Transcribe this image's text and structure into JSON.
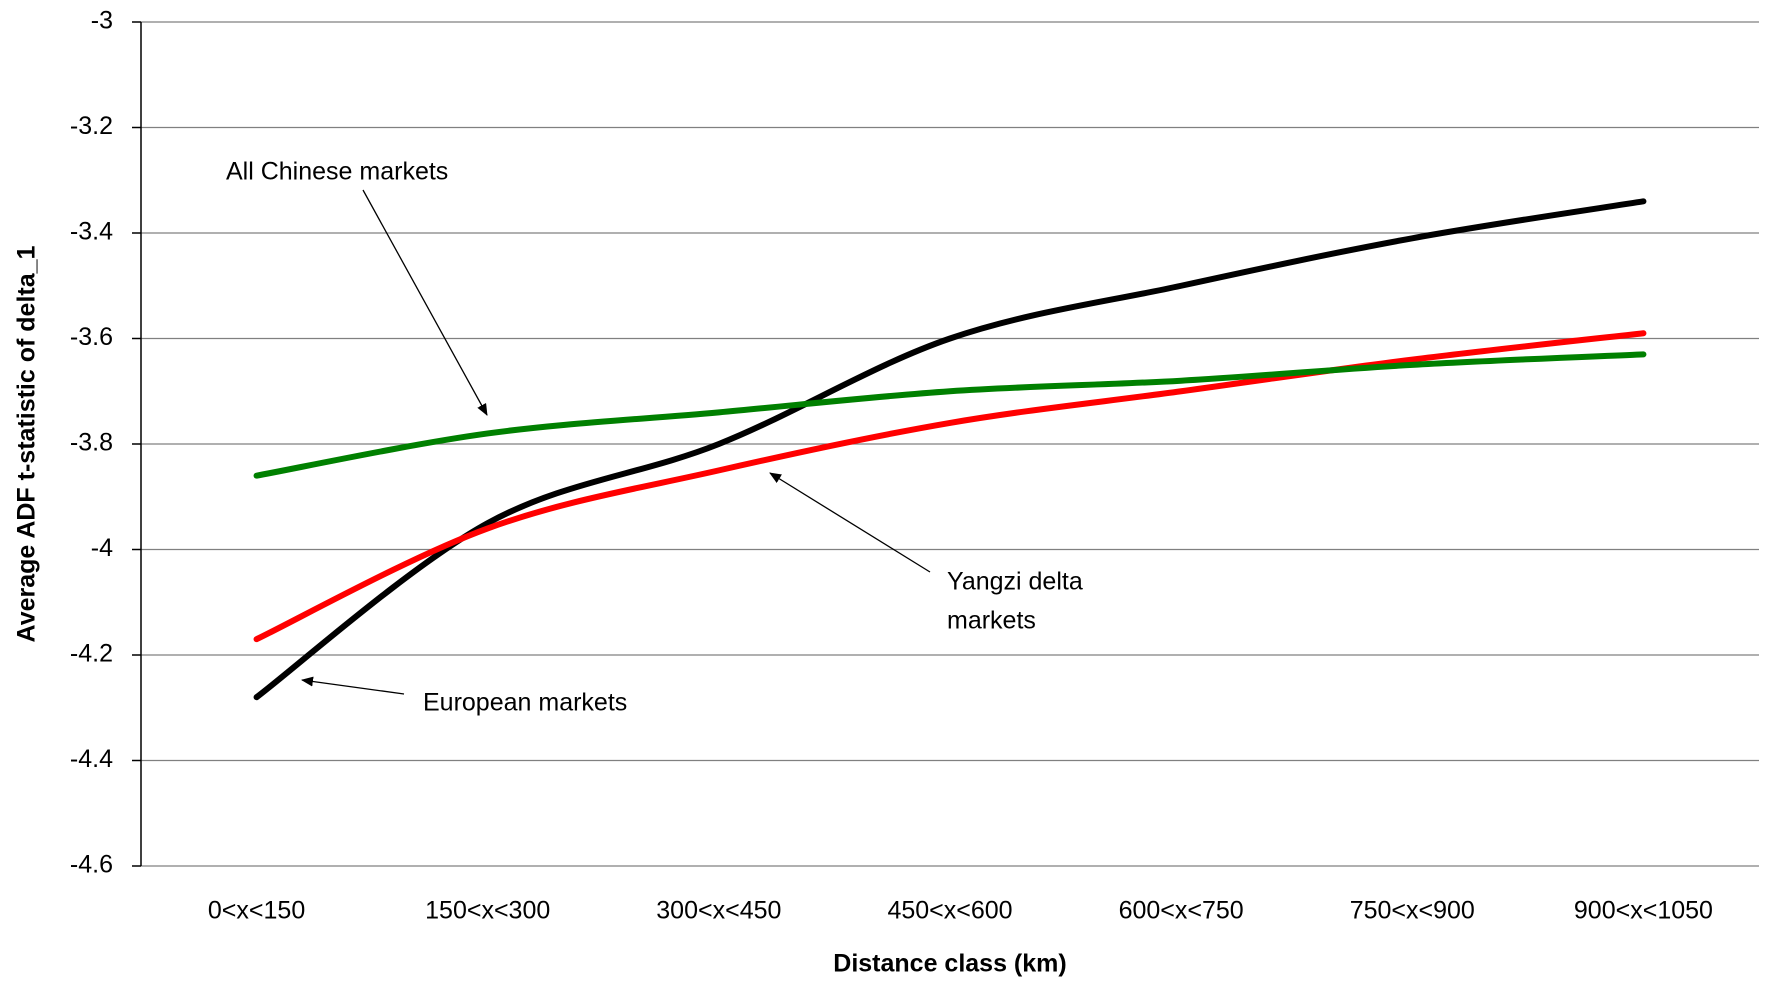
{
  "chart_data": {
    "type": "line",
    "xlabel": "Distance class (km)",
    "ylabel": "Average ADF t-statistic of delta_1",
    "categories": [
      "0<x<150",
      "150<x<300",
      "300<x<450",
      "450<x<600",
      "600<x<750",
      "750<x<900",
      "900<x<1050"
    ],
    "series": [
      {
        "color": "#000000",
        "values": [
          -4.28,
          -3.95,
          -3.8,
          -3.6,
          -3.5,
          -3.41,
          -3.34
        ]
      },
      {
        "color": "#ff0000",
        "values": [
          -4.17,
          -3.96,
          -3.85,
          -3.76,
          -3.7,
          -3.64,
          -3.59
        ]
      },
      {
        "color": "#008000",
        "values": [
          -3.86,
          -3.78,
          -3.74,
          -3.7,
          -3.68,
          -3.65,
          -3.63
        ]
      }
    ],
    "ylim": [
      -4.6,
      -3
    ],
    "yticks": [
      -4.6,
      -4.4,
      -4.2,
      -4,
      -3.8,
      -3.6,
      -3.4,
      -3.2,
      -3
    ],
    "grid": true,
    "annotations": [
      "All Chinese markets",
      "Yangzi delta",
      "markets",
      "European markets"
    ]
  }
}
